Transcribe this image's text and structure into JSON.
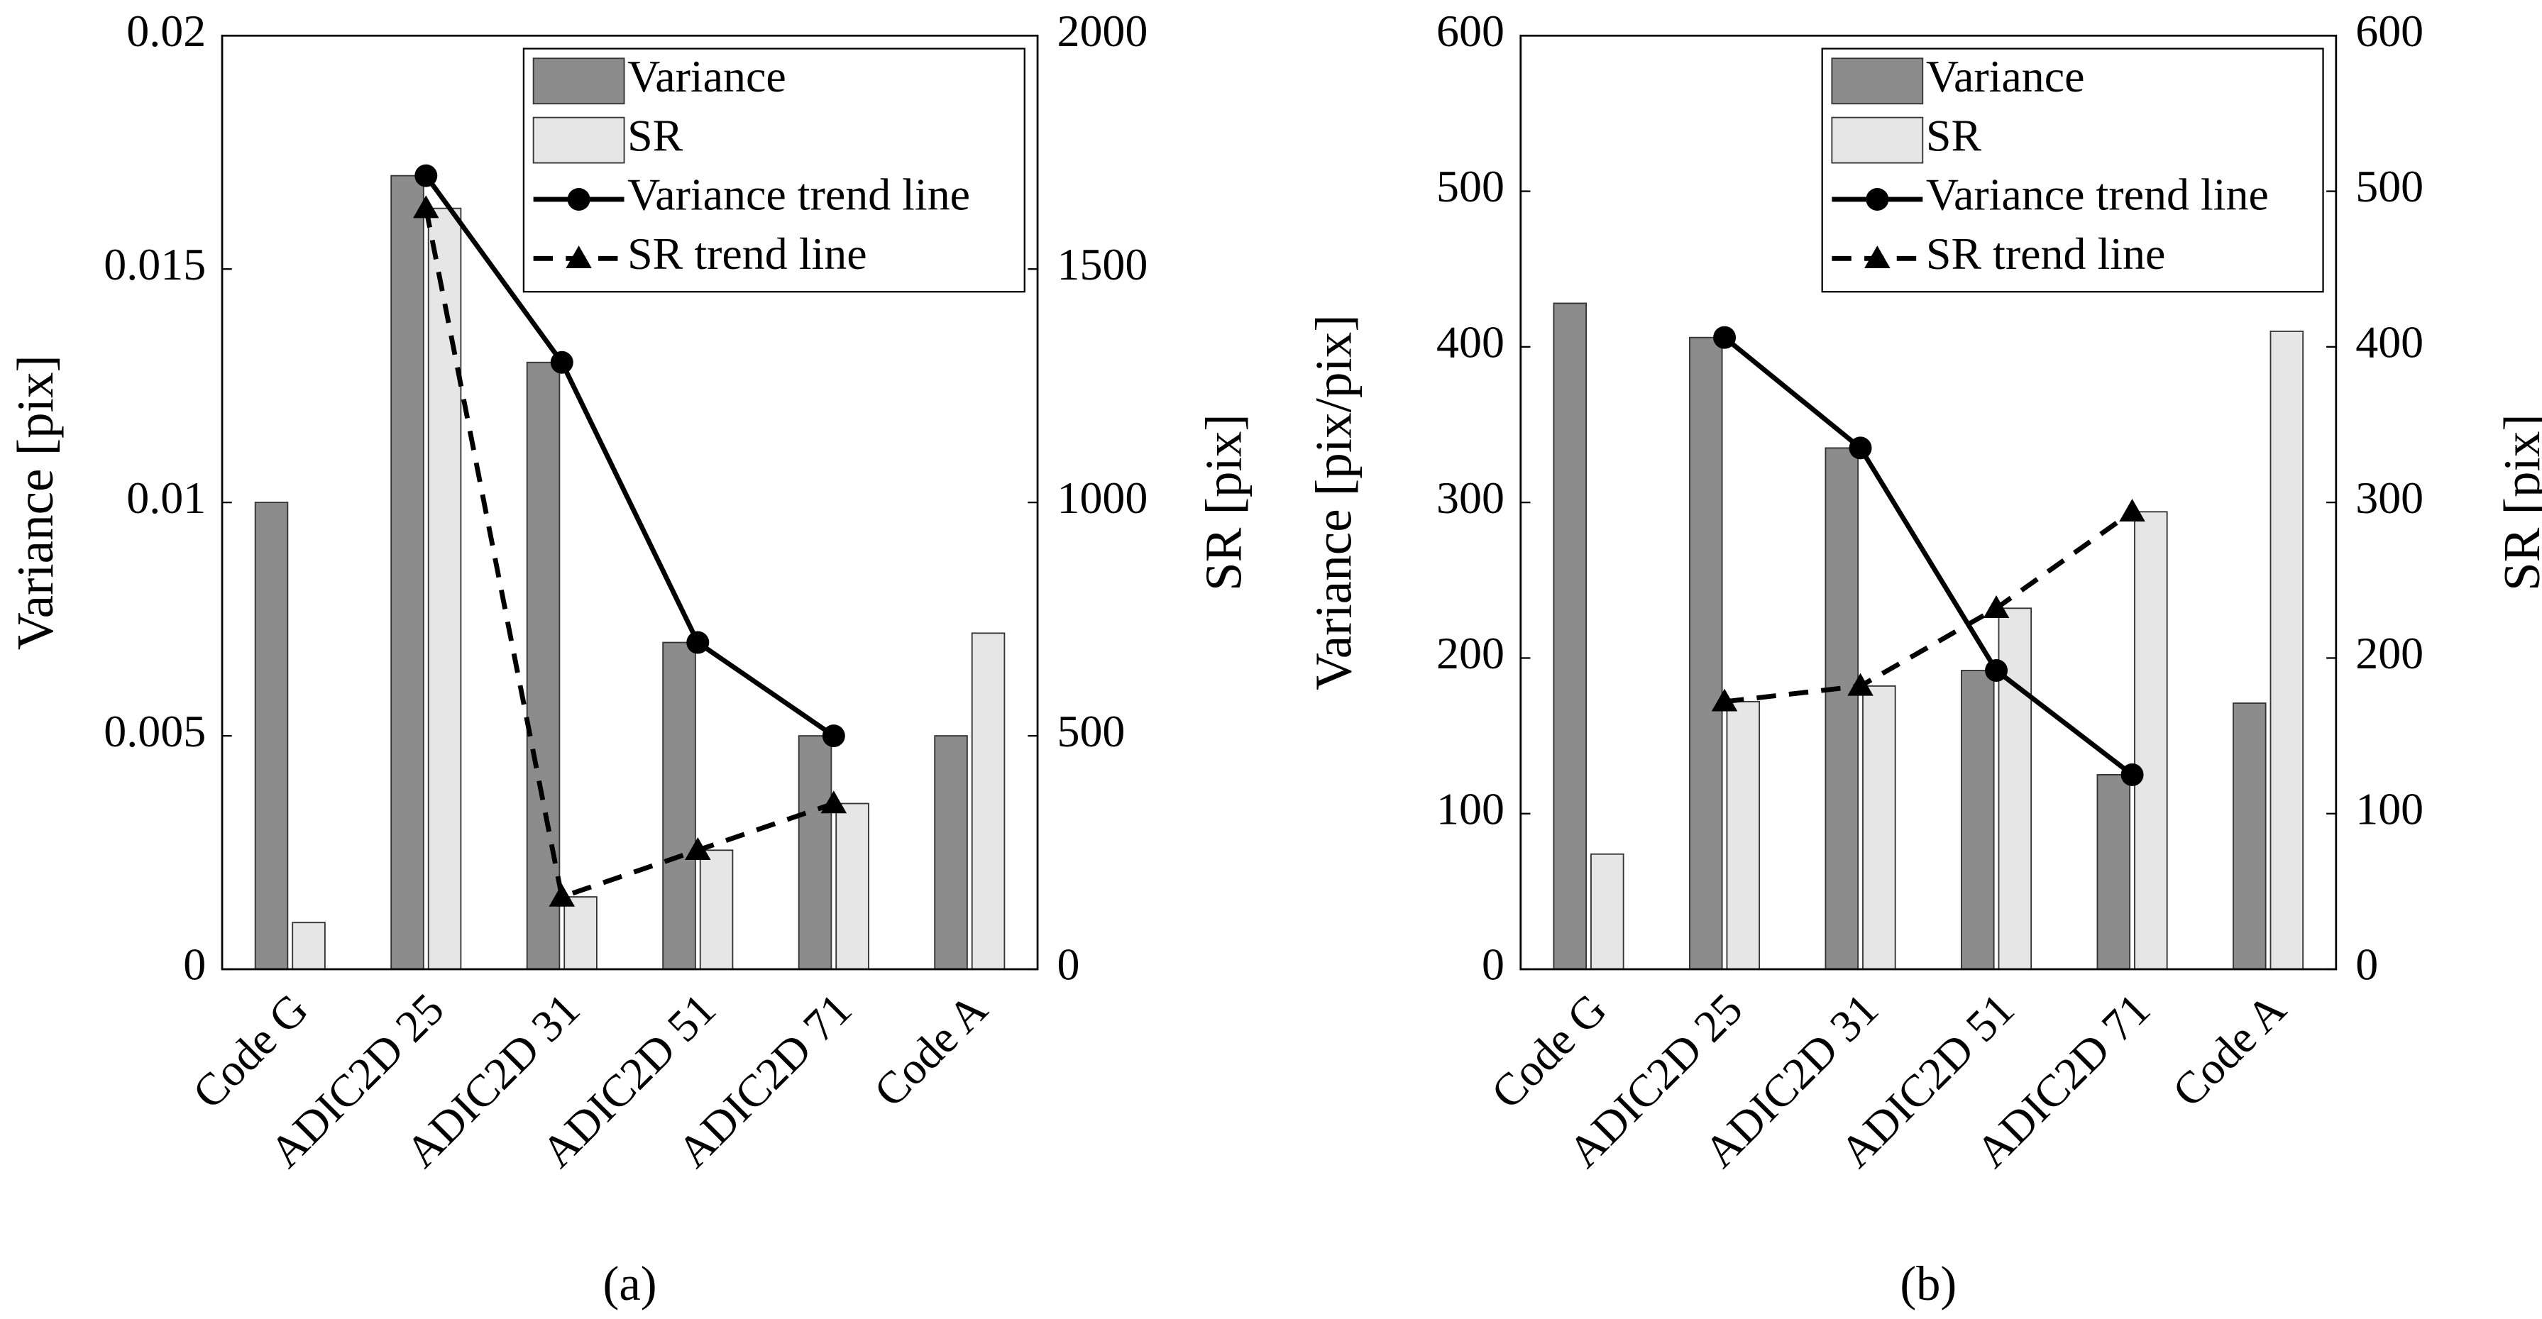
{
  "chart_data": [
    {
      "type": "bar",
      "caption": "(a)",
      "categories": [
        "Code G",
        "ADIC2D 25",
        "ADIC2D 31",
        "ADIC2D 51",
        "ADIC2D 71",
        "Code A"
      ],
      "ylabel": "Variance [pix]",
      "y2label": "SR [pix]",
      "ylim": [
        0,
        0.02
      ],
      "yticks": [
        0,
        0.005,
        0.01,
        0.015,
        0.02
      ],
      "y2lim": [
        0,
        2000
      ],
      "y2ticks": [
        0,
        500,
        1000,
        1500,
        2000
      ],
      "legend": "upper right",
      "series": [
        {
          "name": "Variance",
          "kind": "bar",
          "color": "#8c8c8c",
          "values": [
            0.01,
            0.017,
            0.013,
            0.007,
            0.005,
            0.005
          ]
        },
        {
          "name": "SR",
          "kind": "bar",
          "color": "#e6e6e6",
          "axis": "y2",
          "values": [
            100,
            1630,
            155,
            255,
            355,
            720
          ]
        },
        {
          "name": "Variance trend line",
          "kind": "line",
          "color": "#000000",
          "marker": "circle",
          "dash": "solid",
          "values": [
            null,
            0.017,
            0.013,
            0.007,
            0.005,
            null
          ]
        },
        {
          "name": "SR trend line",
          "kind": "line",
          "color": "#000000",
          "marker": "triangle",
          "dash": "dashed",
          "axis": "y2",
          "values": [
            null,
            1630,
            155,
            255,
            355,
            null
          ]
        }
      ]
    },
    {
      "type": "bar",
      "caption": "(b)",
      "categories": [
        "Code G",
        "ADIC2D 25",
        "ADIC2D 31",
        "ADIC2D 51",
        "ADIC2D 71",
        "Code A"
      ],
      "ylabel": "Variance [pix/pix]",
      "y2label": "SR [pix]",
      "ylim": [
        0,
        600
      ],
      "yticks": [
        0,
        100,
        200,
        300,
        400,
        500,
        600
      ],
      "y2lim": [
        0,
        600
      ],
      "y2ticks": [
        0,
        100,
        200,
        300,
        400,
        500,
        600
      ],
      "legend": "upper right",
      "series": [
        {
          "name": "Variance",
          "kind": "bar",
          "color": "#8c8c8c",
          "values": [
            428,
            406,
            335,
            192,
            125,
            171
          ]
        },
        {
          "name": "SR",
          "kind": "bar",
          "color": "#e6e6e6",
          "axis": "y2",
          "values": [
            74,
            172,
            182,
            232,
            294,
            410
          ]
        },
        {
          "name": "Variance trend line",
          "kind": "line",
          "color": "#000000",
          "marker": "circle",
          "dash": "solid",
          "values": [
            null,
            406,
            335,
            192,
            125,
            null
          ]
        },
        {
          "name": "SR trend line",
          "kind": "line",
          "color": "#000000",
          "marker": "triangle",
          "dash": "dashed",
          "axis": "y2",
          "values": [
            null,
            172,
            182,
            232,
            294,
            null
          ]
        }
      ]
    }
  ]
}
